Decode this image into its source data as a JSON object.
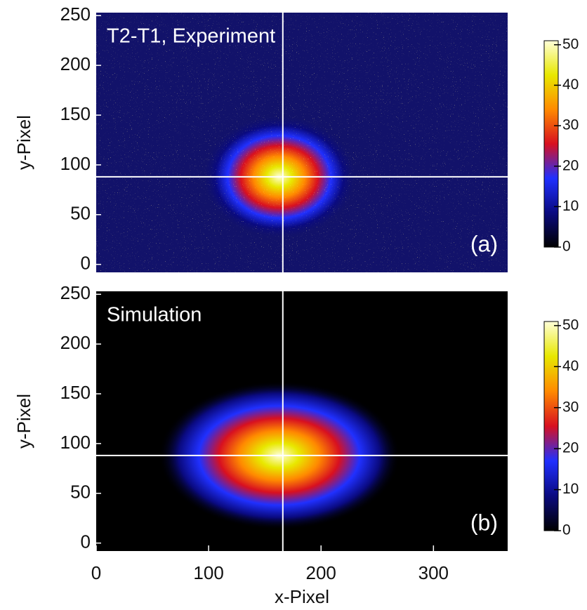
{
  "chart_data": [
    {
      "type": "heatmap",
      "title": "T2-T1, Experiment",
      "panel_label": "(a)",
      "y_label": "y-Pixel",
      "xlim": [
        0,
        366
      ],
      "ylim": [
        -8,
        253
      ],
      "yticks": [
        0,
        50,
        100,
        150,
        200,
        250
      ],
      "crosshair": {
        "x": 166,
        "y": 88
      },
      "colorbar": {
        "lim": [
          0,
          51
        ],
        "ticks": [
          0,
          10,
          20,
          30,
          40,
          50
        ]
      },
      "colormap": [
        "#000000",
        "#0a0a80",
        "#2030ff",
        "#d81020",
        "#ff8a00",
        "#e8e800",
        "#ffffd8"
      ],
      "background": "#12126a",
      "noise": true
    },
    {
      "type": "heatmap",
      "title": "Simulation",
      "panel_label": "(b)",
      "y_label": "y-Pixel",
      "x_label": "x-Pixel",
      "xlim": [
        0,
        366
      ],
      "ylim": [
        -8,
        253
      ],
      "yticks": [
        0,
        50,
        100,
        150,
        200,
        250
      ],
      "xticks": [
        0,
        100,
        200,
        300
      ],
      "crosshair": {
        "x": 166,
        "y": 88
      },
      "colorbar": {
        "lim": [
          0,
          51
        ],
        "ticks": [
          0,
          10,
          20,
          30,
          40,
          50
        ]
      },
      "colormap": [
        "#000000",
        "#0a0a80",
        "#2030ff",
        "#d81020",
        "#ff8a00",
        "#e8e800",
        "#ffffd8"
      ],
      "background": "#000000",
      "noise": false
    }
  ]
}
